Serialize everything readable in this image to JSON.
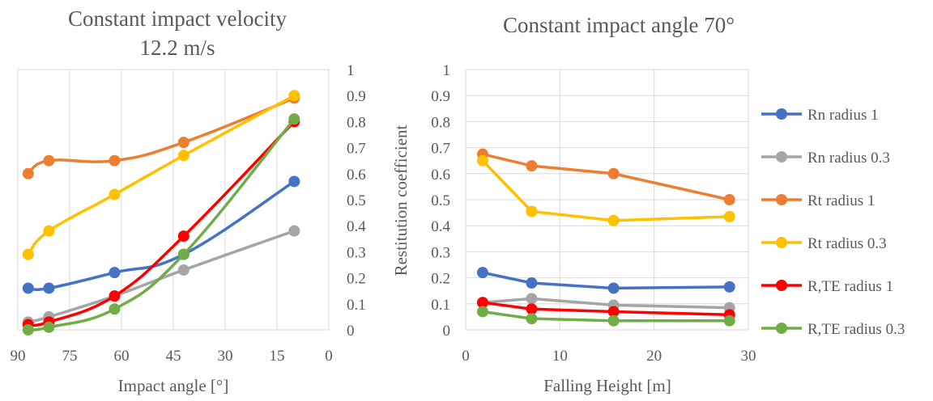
{
  "chart_data": [
    {
      "type": "line",
      "title_line1": "Constant impact velocity",
      "title_line2": "12.2 m/s",
      "xlabel": "Impact angle [°]",
      "ylabel": "",
      "x_reversed": true,
      "xlim": [
        0,
        90
      ],
      "ylim": [
        0,
        1
      ],
      "x_ticks": [
        90,
        75,
        60,
        45,
        30,
        15,
        0
      ],
      "y_ticks": [
        0,
        0.1,
        0.2,
        0.3,
        0.4,
        0.5,
        0.6,
        0.7,
        0.8,
        0.9,
        1
      ],
      "y_axis_side": "right",
      "grid": "vertical",
      "smooth": true,
      "series": [
        {
          "name": "Rn radius 1",
          "color": "#4472C4",
          "points": [
            [
              87,
              0.16
            ],
            [
              81,
              0.16
            ],
            [
              62,
              0.22
            ],
            [
              42,
              0.29
            ],
            [
              10,
              0.57
            ]
          ]
        },
        {
          "name": "Rn radius 0.3",
          "color": "#A5A5A5",
          "points": [
            [
              87,
              0.03
            ],
            [
              81,
              0.05
            ],
            [
              62,
              0.13
            ],
            [
              42,
              0.23
            ],
            [
              10,
              0.38
            ]
          ]
        },
        {
          "name": "Rt radius 1",
          "color": "#ED7D31",
          "points": [
            [
              87,
              0.6
            ],
            [
              81,
              0.65
            ],
            [
              62,
              0.65
            ],
            [
              42,
              0.72
            ],
            [
              10,
              0.89
            ]
          ]
        },
        {
          "name": "Rt radius 0.3",
          "color": "#FFC000",
          "points": [
            [
              87,
              0.29
            ],
            [
              81,
              0.38
            ],
            [
              62,
              0.52
            ],
            [
              42,
              0.67
            ],
            [
              10,
              0.9
            ]
          ]
        },
        {
          "name": "R,TE radius 1",
          "color": "#FF0000",
          "points": [
            [
              87,
              0.02
            ],
            [
              81,
              0.03
            ],
            [
              62,
              0.13
            ],
            [
              42,
              0.36
            ],
            [
              10,
              0.8
            ]
          ]
        },
        {
          "name": "R,TE radius 0.3",
          "color": "#70AD47",
          "points": [
            [
              87,
              0.0
            ],
            [
              81,
              0.01
            ],
            [
              62,
              0.08
            ],
            [
              42,
              0.29
            ],
            [
              10,
              0.81
            ]
          ]
        }
      ]
    },
    {
      "type": "line",
      "title": "Constant impact angle 70°",
      "xlabel": "Falling Height [m]",
      "ylabel": "Restitution coefficient",
      "xlim": [
        0,
        30
      ],
      "ylim": [
        0,
        1
      ],
      "x_ticks": [
        0,
        10,
        20,
        30
      ],
      "y_ticks": [
        0,
        0.1,
        0.2,
        0.3,
        0.4,
        0.5,
        0.6,
        0.7,
        0.8,
        0.9,
        1
      ],
      "y_axis_side": "left",
      "grid": "both",
      "legend_position": "right",
      "series": [
        {
          "name": "Rn radius 1",
          "color": "#4472C4",
          "points": [
            [
              1.8,
              0.22
            ],
            [
              7,
              0.18
            ],
            [
              15.7,
              0.16
            ],
            [
              28,
              0.165
            ]
          ]
        },
        {
          "name": "Rn radius 0.3",
          "color": "#A5A5A5",
          "points": [
            [
              1.8,
              0.105
            ],
            [
              7,
              0.12
            ],
            [
              15.7,
              0.095
            ],
            [
              28,
              0.085
            ]
          ]
        },
        {
          "name": "Rt radius 1",
          "color": "#ED7D31",
          "points": [
            [
              1.8,
              0.675
            ],
            [
              7,
              0.63
            ],
            [
              15.7,
              0.6
            ],
            [
              28,
              0.5
            ]
          ]
        },
        {
          "name": "Rt radius 0.3",
          "color": "#FFC000",
          "points": [
            [
              1.8,
              0.65
            ],
            [
              7,
              0.455
            ],
            [
              15.7,
              0.42
            ],
            [
              28,
              0.435
            ]
          ]
        },
        {
          "name": "R,TE radius 1",
          "color": "#FF0000",
          "points": [
            [
              1.8,
              0.105
            ],
            [
              7,
              0.08
            ],
            [
              15.7,
              0.07
            ],
            [
              28,
              0.058
            ]
          ]
        },
        {
          "name": "R,TE radius 0.3",
          "color": "#70AD47",
          "points": [
            [
              1.8,
              0.07
            ],
            [
              7,
              0.043
            ],
            [
              15.7,
              0.035
            ],
            [
              28,
              0.035
            ]
          ]
        }
      ]
    }
  ]
}
